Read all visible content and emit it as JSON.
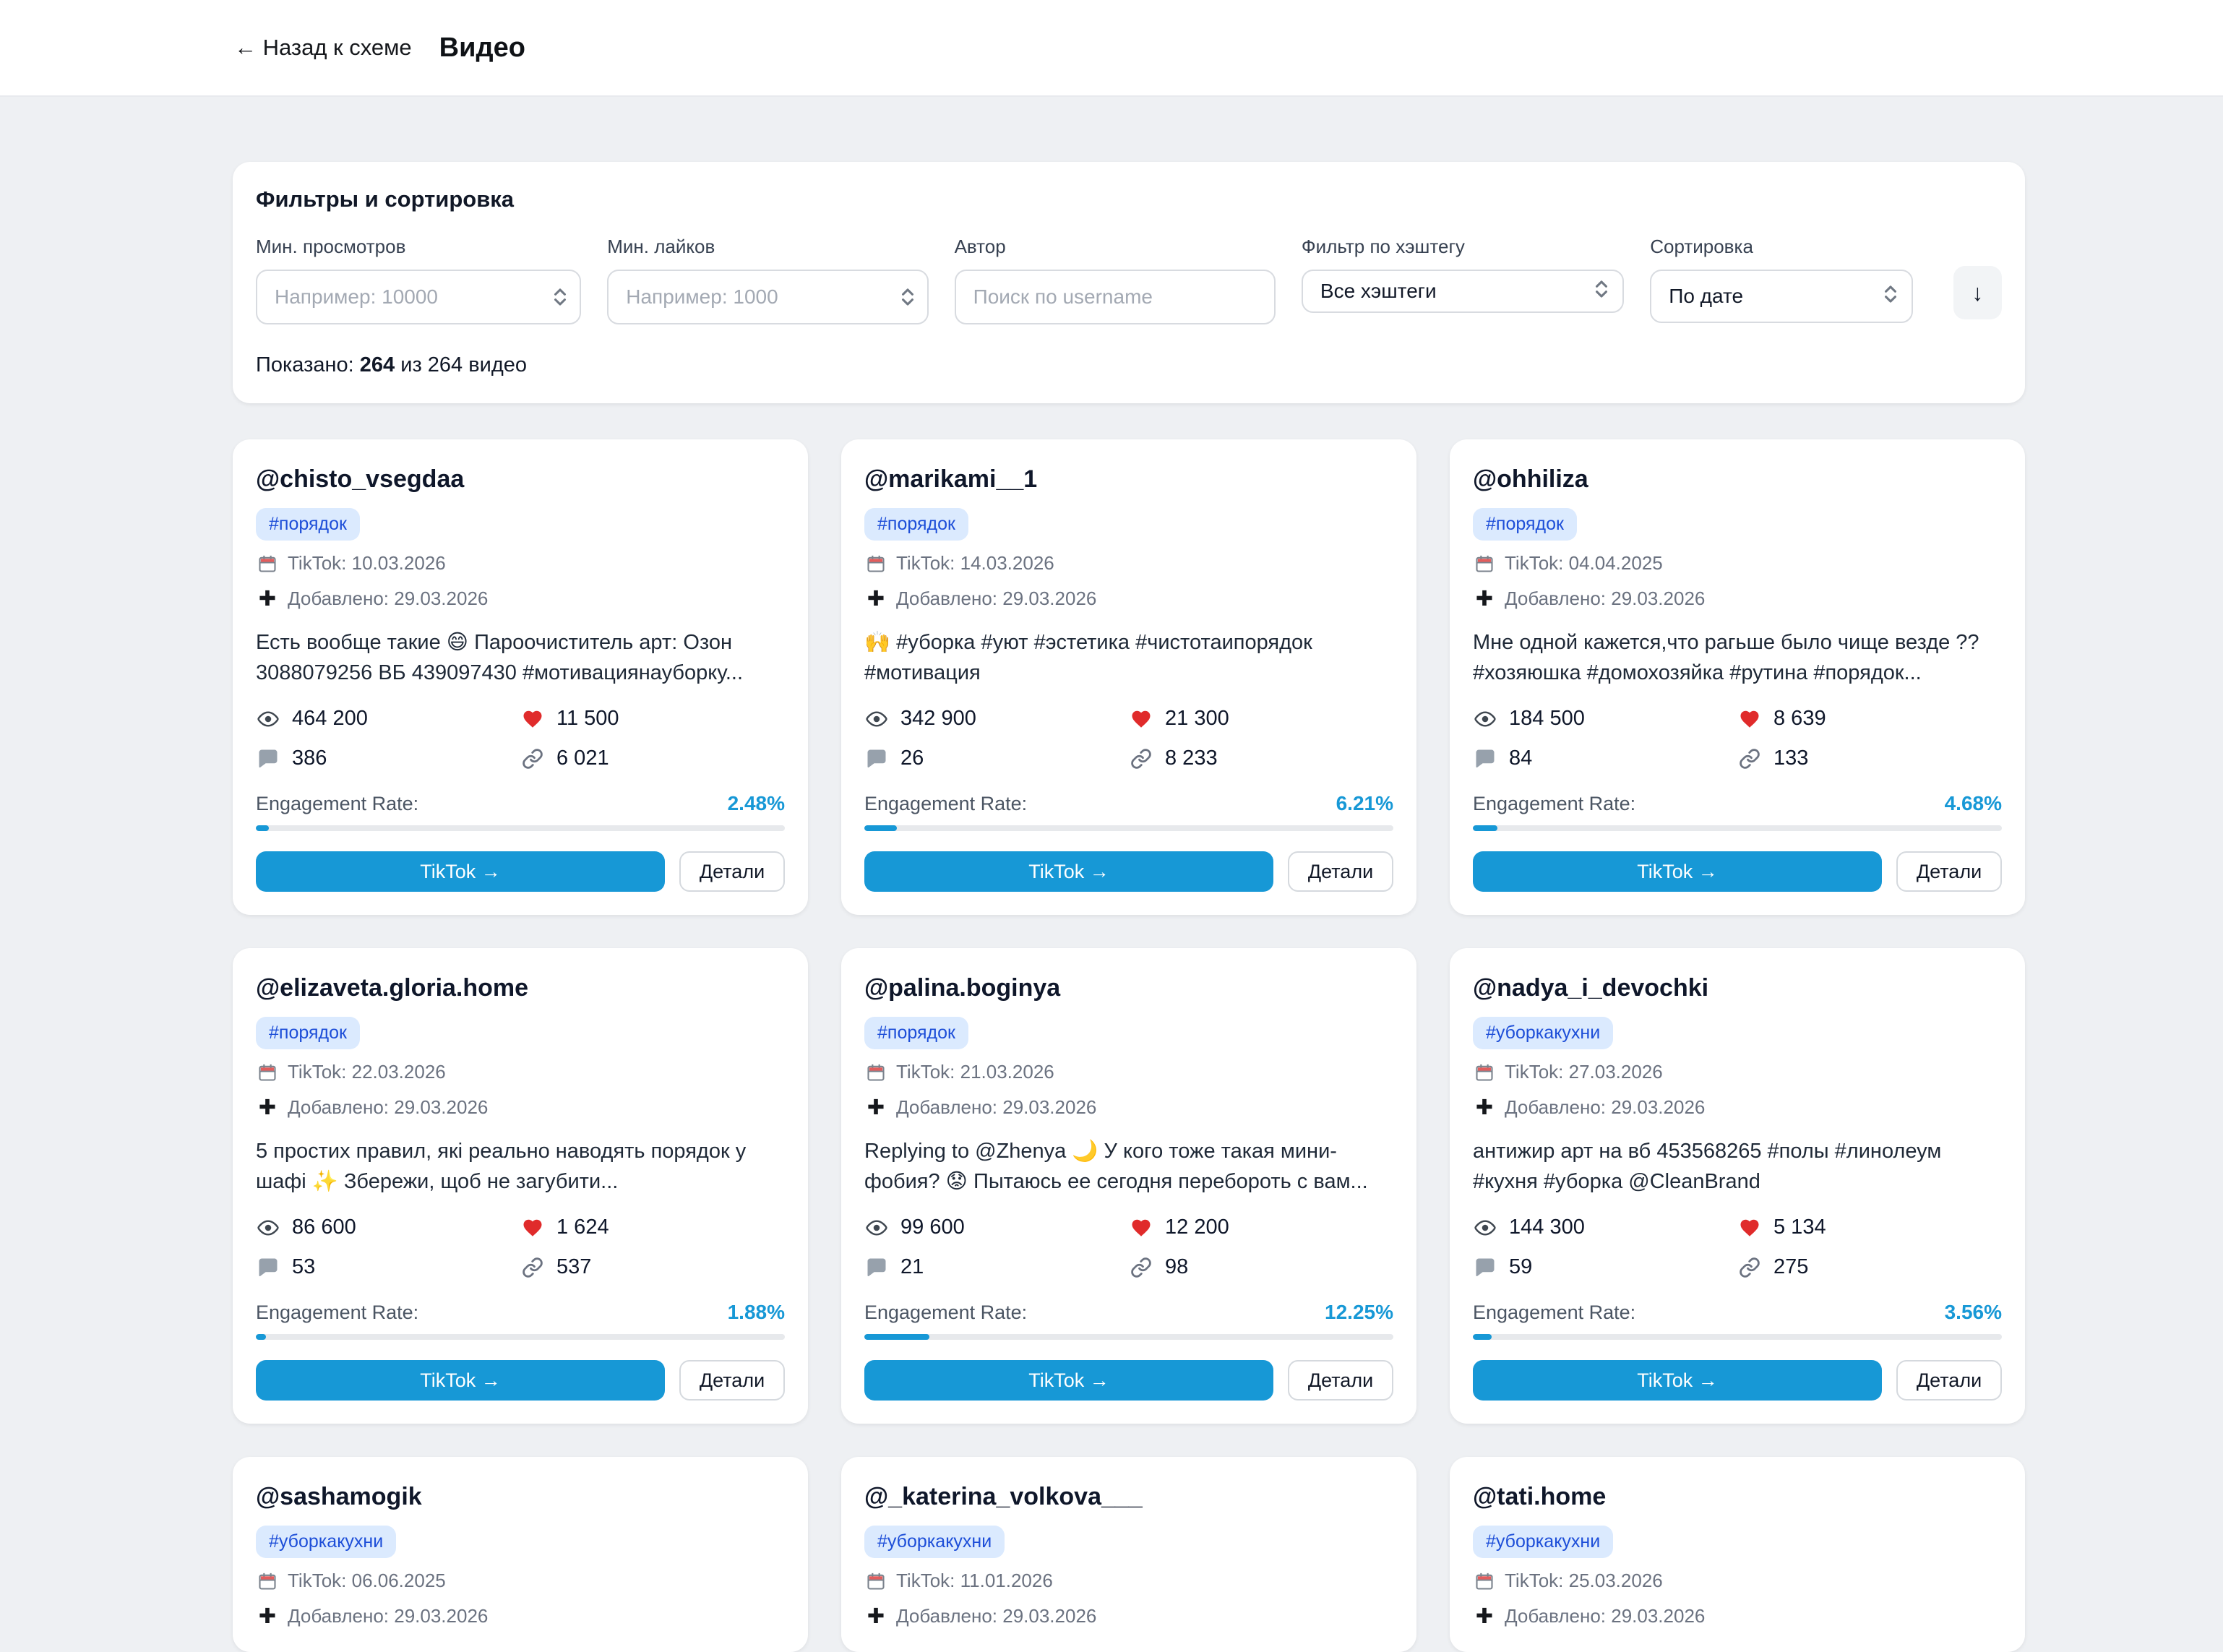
{
  "colors": {
    "accent": "#1798d6",
    "badge_bg": "#dbeafe",
    "badge_text": "#1d4ed8",
    "heart": "#e02b2b",
    "page_bg": "#eef0f3"
  },
  "header": {
    "back_label": "← Назад к схеме",
    "title": "Видео"
  },
  "filters": {
    "title": "Фильтры и сортировка",
    "fields": [
      {
        "label": "Мин. просмотров",
        "placeholder": "Например: 10000",
        "type": "number"
      },
      {
        "label": "Мин. лайков",
        "placeholder": "Например: 1000",
        "type": "number"
      },
      {
        "label": "Автор",
        "placeholder": "Поиск по username",
        "type": "text"
      },
      {
        "label": "Фильтр по хэштегу",
        "value": "Все хэштеги",
        "type": "select"
      },
      {
        "label": "Сортировка",
        "value": "По дате",
        "type": "select"
      }
    ],
    "download_icon": "↓",
    "shown_prefix": "Показано: ",
    "shown_count": "264",
    "shown_suffix": " из 264 видео"
  },
  "card_labels": {
    "tiktok_prefix": "TikTok: ",
    "added_prefix": "Добавлено: ",
    "engagement_label": "Engagement Rate:",
    "tiktok_button": "TikTok →",
    "details_button": "Детали"
  },
  "icons": {
    "views": "eye-icon",
    "likes": "heart-icon",
    "comments": "comment-icon",
    "shares": "link-icon",
    "tiktok_date": "calendar-icon",
    "added_date": "plus-icon",
    "download": "down-arrow-icon",
    "back": "left-arrow-icon",
    "steppers": "chevron-up-down-icon"
  },
  "cards": [
    {
      "username": "@chisto_vsegdaa",
      "hashtag": "#порядок",
      "tiktok_date": "10.03.2026",
      "added_date": "29.03.2026",
      "description": "Есть вообще такие 😄 Пароочиститель арт: Озон 3088079256 ВБ 439097430 #мотивациянауборку...",
      "views": "464 200",
      "likes": "11 500",
      "comments": "386",
      "shares": "6 021",
      "er": "2.48%",
      "er_value": 2.48
    },
    {
      "username": "@marikami__1",
      "hashtag": "#порядок",
      "tiktok_date": "14.03.2026",
      "added_date": "29.03.2026",
      "description": "🙌 #уборка #уют #эстетика #чистотаипорядок #мотивация",
      "views": "342 900",
      "likes": "21 300",
      "comments": "26",
      "shares": "8 233",
      "er": "6.21%",
      "er_value": 6.21
    },
    {
      "username": "@ohhiliza",
      "hashtag": "#порядок",
      "tiktok_date": "04.04.2025",
      "added_date": "29.03.2026",
      "description": "Мне одной кажется,что рагьше было чище везде ?? #хозяюшка #домохозяйка #рутина #порядок...",
      "views": "184 500",
      "likes": "8 639",
      "comments": "84",
      "shares": "133",
      "er": "4.68%",
      "er_value": 4.68
    },
    {
      "username": "@elizaveta.gloria.home",
      "hashtag": "#порядок",
      "tiktok_date": "22.03.2026",
      "added_date": "29.03.2026",
      "description": "5 простих правил, які реально наводять порядок у шафі ✨ Збережи, щоб не загубити...",
      "views": "86 600",
      "likes": "1 624",
      "comments": "53",
      "shares": "537",
      "er": "1.88%",
      "er_value": 1.88
    },
    {
      "username": "@palina.boginya",
      "hashtag": "#порядок",
      "tiktok_date": "21.03.2026",
      "added_date": "29.03.2026",
      "description": "Replying to @Zhenya 🌙  У кого тоже такая мини-фобия? 😟 Пытаюсь ее сегодня перебороть с вам...",
      "views": "99 600",
      "likes": "12 200",
      "comments": "21",
      "shares": "98",
      "er": "12.25%",
      "er_value": 12.25
    },
    {
      "username": "@nadya_i_devochki",
      "hashtag": "#уборкакухни",
      "tiktok_date": "27.03.2026",
      "added_date": "29.03.2026",
      "description": "антижир арт на вб 453568265 #полы #линолеум #кухня #уборка @CleanBrand",
      "views": "144 300",
      "likes": "5 134",
      "comments": "59",
      "shares": "275",
      "er": "3.56%",
      "er_value": 3.56
    },
    {
      "username": "@sashamogik",
      "hashtag": "#уборкакухни",
      "tiktok_date": "06.06.2025",
      "added_date": "29.03.2026",
      "partial": true
    },
    {
      "username": "@_katerina_volkova___",
      "hashtag": "#уборкакухни",
      "tiktok_date": "11.01.2026",
      "added_date": "29.03.2026",
      "partial": true
    },
    {
      "username": "@tati.home",
      "hashtag": "#уборкакухни",
      "tiktok_date": "25.03.2026",
      "added_date": "29.03.2026",
      "partial": true
    }
  ]
}
